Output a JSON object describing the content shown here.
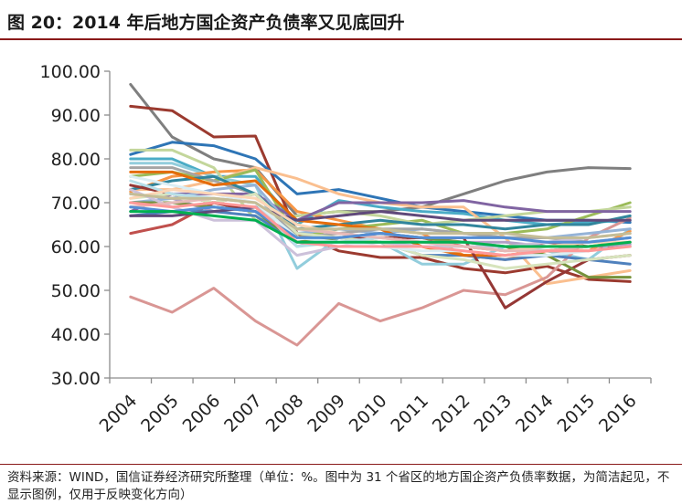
{
  "figure": {
    "title": "图 20：2014 年后地方国企资产负债率又见底回升",
    "source_note": "资料来源：WIND，国信证券经济研究所整理（单位：%。图中为 31 个省区的地方国企资产负债率数据，为简洁起见，不显示图例，仅用于反映变化方向）"
  },
  "chart_data": {
    "type": "line",
    "title": "",
    "xlabel": "",
    "ylabel": "",
    "x": [
      "2004",
      "2005",
      "2006",
      "2007",
      "2008",
      "2009",
      "2010",
      "2011",
      "2012",
      "2013",
      "2014",
      "2015",
      "2016"
    ],
    "ylim": [
      30,
      100
    ],
    "yticks": [
      "30.00",
      "40.00",
      "50.00",
      "60.00",
      "70.00",
      "80.00",
      "90.00",
      "100.00"
    ],
    "grid": false,
    "legend": "none",
    "series": [
      {
        "color": "#7f7f7f",
        "values": [
          97.0,
          85.0,
          80.0,
          78.0,
          67.0,
          68.0,
          68.0,
          69.0,
          72.0,
          75.0,
          77.0,
          78.0,
          77.8
        ]
      },
      {
        "color": "#c0504d",
        "values": [
          63.0,
          65.0,
          70.0,
          72.0,
          63.0,
          62.0,
          62.0,
          62.0,
          60.0,
          59.0,
          61.0,
          60.0,
          60.0
        ]
      },
      {
        "color": "#9b3a2f",
        "values": [
          92.0,
          91.0,
          85.0,
          85.2,
          63.0,
          59.0,
          57.5,
          57.5,
          55.0,
          54.0,
          55.5,
          52.5,
          52.0
        ]
      },
      {
        "color": "#2e75b6",
        "values": [
          81.0,
          83.8,
          83.0,
          80.0,
          72.0,
          73.0,
          71.0,
          69.0,
          68.0,
          67.0,
          66.0,
          66.0,
          65.5
        ]
      },
      {
        "color": "#4bacc6",
        "values": [
          80.0,
          80.0,
          76.0,
          76.0,
          65.0,
          70.5,
          69.0,
          68.0,
          67.5,
          66.0,
          65.0,
          65.5,
          66.0
        ]
      },
      {
        "color": "#92cddc",
        "values": [
          79.0,
          79.0,
          76.0,
          74.0,
          55.0,
          62.0,
          61.0,
          56.0,
          56.0,
          60.0,
          59.0,
          57.0,
          64.0
        ]
      },
      {
        "color": "#f79646",
        "values": [
          72.5,
          76.0,
          77.0,
          77.5,
          68.0,
          66.0,
          64.0,
          63.0,
          58.0,
          57.0,
          59.0,
          59.0,
          63.5
        ]
      },
      {
        "color": "#fabf8f",
        "values": [
          73.0,
          73.0,
          75.0,
          78.0,
          75.5,
          72.0,
          70.0,
          69.0,
          69.0,
          62.0,
          51.5,
          53.0,
          54.5
        ]
      },
      {
        "color": "#9bbb59",
        "values": [
          76.0,
          77.0,
          75.0,
          77.5,
          62.0,
          64.0,
          65.0,
          66.0,
          63.0,
          63.0,
          64.0,
          67.0,
          70.0
        ]
      },
      {
        "color": "#c3d69b",
        "values": [
          82.0,
          82.0,
          78.0,
          66.0,
          67.0,
          68.0,
          67.0,
          65.0,
          66.0,
          67.0,
          68.0,
          68.0,
          69.0
        ]
      },
      {
        "color": "#8064a2",
        "values": [
          68.0,
          72.0,
          72.0,
          72.0,
          66.0,
          70.0,
          70.0,
          70.0,
          70.5,
          69.0,
          68.0,
          68.0,
          68.0
        ]
      },
      {
        "color": "#b1a0c7",
        "values": [
          72.0,
          71.0,
          68.0,
          69.0,
          60.0,
          62.0,
          63.0,
          62.0,
          61.0,
          61.0,
          60.0,
          60.0,
          60.5
        ]
      },
      {
        "color": "#d99694",
        "values": [
          48.5,
          45.0,
          50.5,
          43.0,
          37.5,
          47.0,
          43.0,
          46.0,
          50.0,
          49.0,
          53.0,
          62.0,
          66.5
        ]
      },
      {
        "color": "#4f81bd",
        "values": [
          67.0,
          68.0,
          68.0,
          67.0,
          61.0,
          62.0,
          61.0,
          58.0,
          58.0,
          57.0,
          58.0,
          57.0,
          56.0
        ]
      },
      {
        "color": "#95b3d7",
        "values": [
          70.0,
          71.0,
          73.0,
          74.0,
          63.0,
          64.0,
          63.0,
          64.0,
          63.0,
          62.0,
          62.0,
          63.0,
          64.0
        ]
      },
      {
        "color": "#a5a5a5",
        "values": [
          78.0,
          78.0,
          75.0,
          72.0,
          62.0,
          63.0,
          64.0,
          64.0,
          63.0,
          62.0,
          62.0,
          61.0,
          62.0
        ]
      },
      {
        "color": "#31859c",
        "values": [
          73.0,
          75.0,
          76.0,
          72.0,
          64.0,
          65.0,
          66.0,
          65.0,
          65.0,
          64.0,
          65.0,
          65.0,
          67.0
        ]
      },
      {
        "color": "#e46c0a",
        "values": [
          77.0,
          77.0,
          74.0,
          75.0,
          66.0,
          65.0,
          64.0,
          60.0,
          58.0,
          58.0,
          59.0,
          60.0,
          61.0
        ]
      },
      {
        "color": "#953735",
        "values": [
          74.0,
          72.0,
          70.0,
          68.0,
          62.0,
          62.0,
          62.0,
          62.0,
          62.0,
          46.0,
          52.0,
          57.0,
          58.0
        ]
      },
      {
        "color": "#76923c",
        "values": [
          70.0,
          70.0,
          69.0,
          68.0,
          61.0,
          62.0,
          63.0,
          62.0,
          61.0,
          60.0,
          58.0,
          53.0,
          53.0
        ]
      },
      {
        "color": "#d7e4bd",
        "values": [
          71.0,
          72.0,
          70.0,
          72.0,
          63.0,
          62.0,
          61.0,
          58.0,
          57.0,
          55.0,
          56.0,
          57.0,
          58.0
        ]
      },
      {
        "color": "#60497a",
        "values": [
          67.0,
          67.0,
          68.0,
          69.0,
          66.0,
          67.0,
          68.0,
          67.0,
          66.0,
          66.0,
          66.0,
          66.0,
          66.0
        ]
      },
      {
        "color": "#ccc1da",
        "values": [
          73.0,
          69.0,
          66.0,
          66.0,
          58.0,
          60.0,
          61.0,
          60.0,
          60.0,
          60.0,
          61.0,
          62.0,
          63.0
        ]
      },
      {
        "color": "#b7dee8",
        "values": [
          75.0,
          72.0,
          71.0,
          70.0,
          60.0,
          61.0,
          62.0,
          61.0,
          61.0,
          60.0,
          60.0,
          61.0,
          62.0
        ]
      },
      {
        "color": "#dbeef4",
        "values": [
          76.0,
          74.0,
          72.0,
          70.0,
          62.0,
          61.0,
          60.0,
          59.0,
          59.0,
          58.0,
          58.0,
          59.0,
          60.0
        ]
      },
      {
        "color": "#fcd5b5",
        "values": [
          71.0,
          73.0,
          72.0,
          71.0,
          65.0,
          63.0,
          62.0,
          61.0,
          60.0,
          59.0,
          60.0,
          61.0,
          61.0
        ]
      },
      {
        "color": "#e6b9b8",
        "values": [
          69.0,
          70.0,
          71.0,
          70.0,
          64.0,
          63.0,
          62.0,
          61.0,
          60.0,
          59.0,
          59.0,
          60.0,
          61.0
        ]
      },
      {
        "color": "#c4bd97",
        "values": [
          72.0,
          71.0,
          71.0,
          70.0,
          64.0,
          64.0,
          64.0,
          63.0,
          63.0,
          63.0,
          62.0,
          62.0,
          63.0
        ]
      },
      {
        "color": "#538dd5",
        "values": [
          69.0,
          68.0,
          69.0,
          68.0,
          62.0,
          62.0,
          63.0,
          62.0,
          62.0,
          62.0,
          61.0,
          61.0,
          62.0
        ]
      },
      {
        "color": "#ff9999",
        "values": [
          70.0,
          69.0,
          70.0,
          69.0,
          61.0,
          60.0,
          60.0,
          60.0,
          59.0,
          58.0,
          59.0,
          59.0,
          60.0
        ]
      },
      {
        "color": "#00b050",
        "values": [
          68.0,
          68.0,
          67.0,
          66.0,
          61.0,
          61.0,
          61.0,
          61.0,
          61.0,
          60.0,
          60.0,
          60.0,
          61.0
        ]
      }
    ]
  }
}
